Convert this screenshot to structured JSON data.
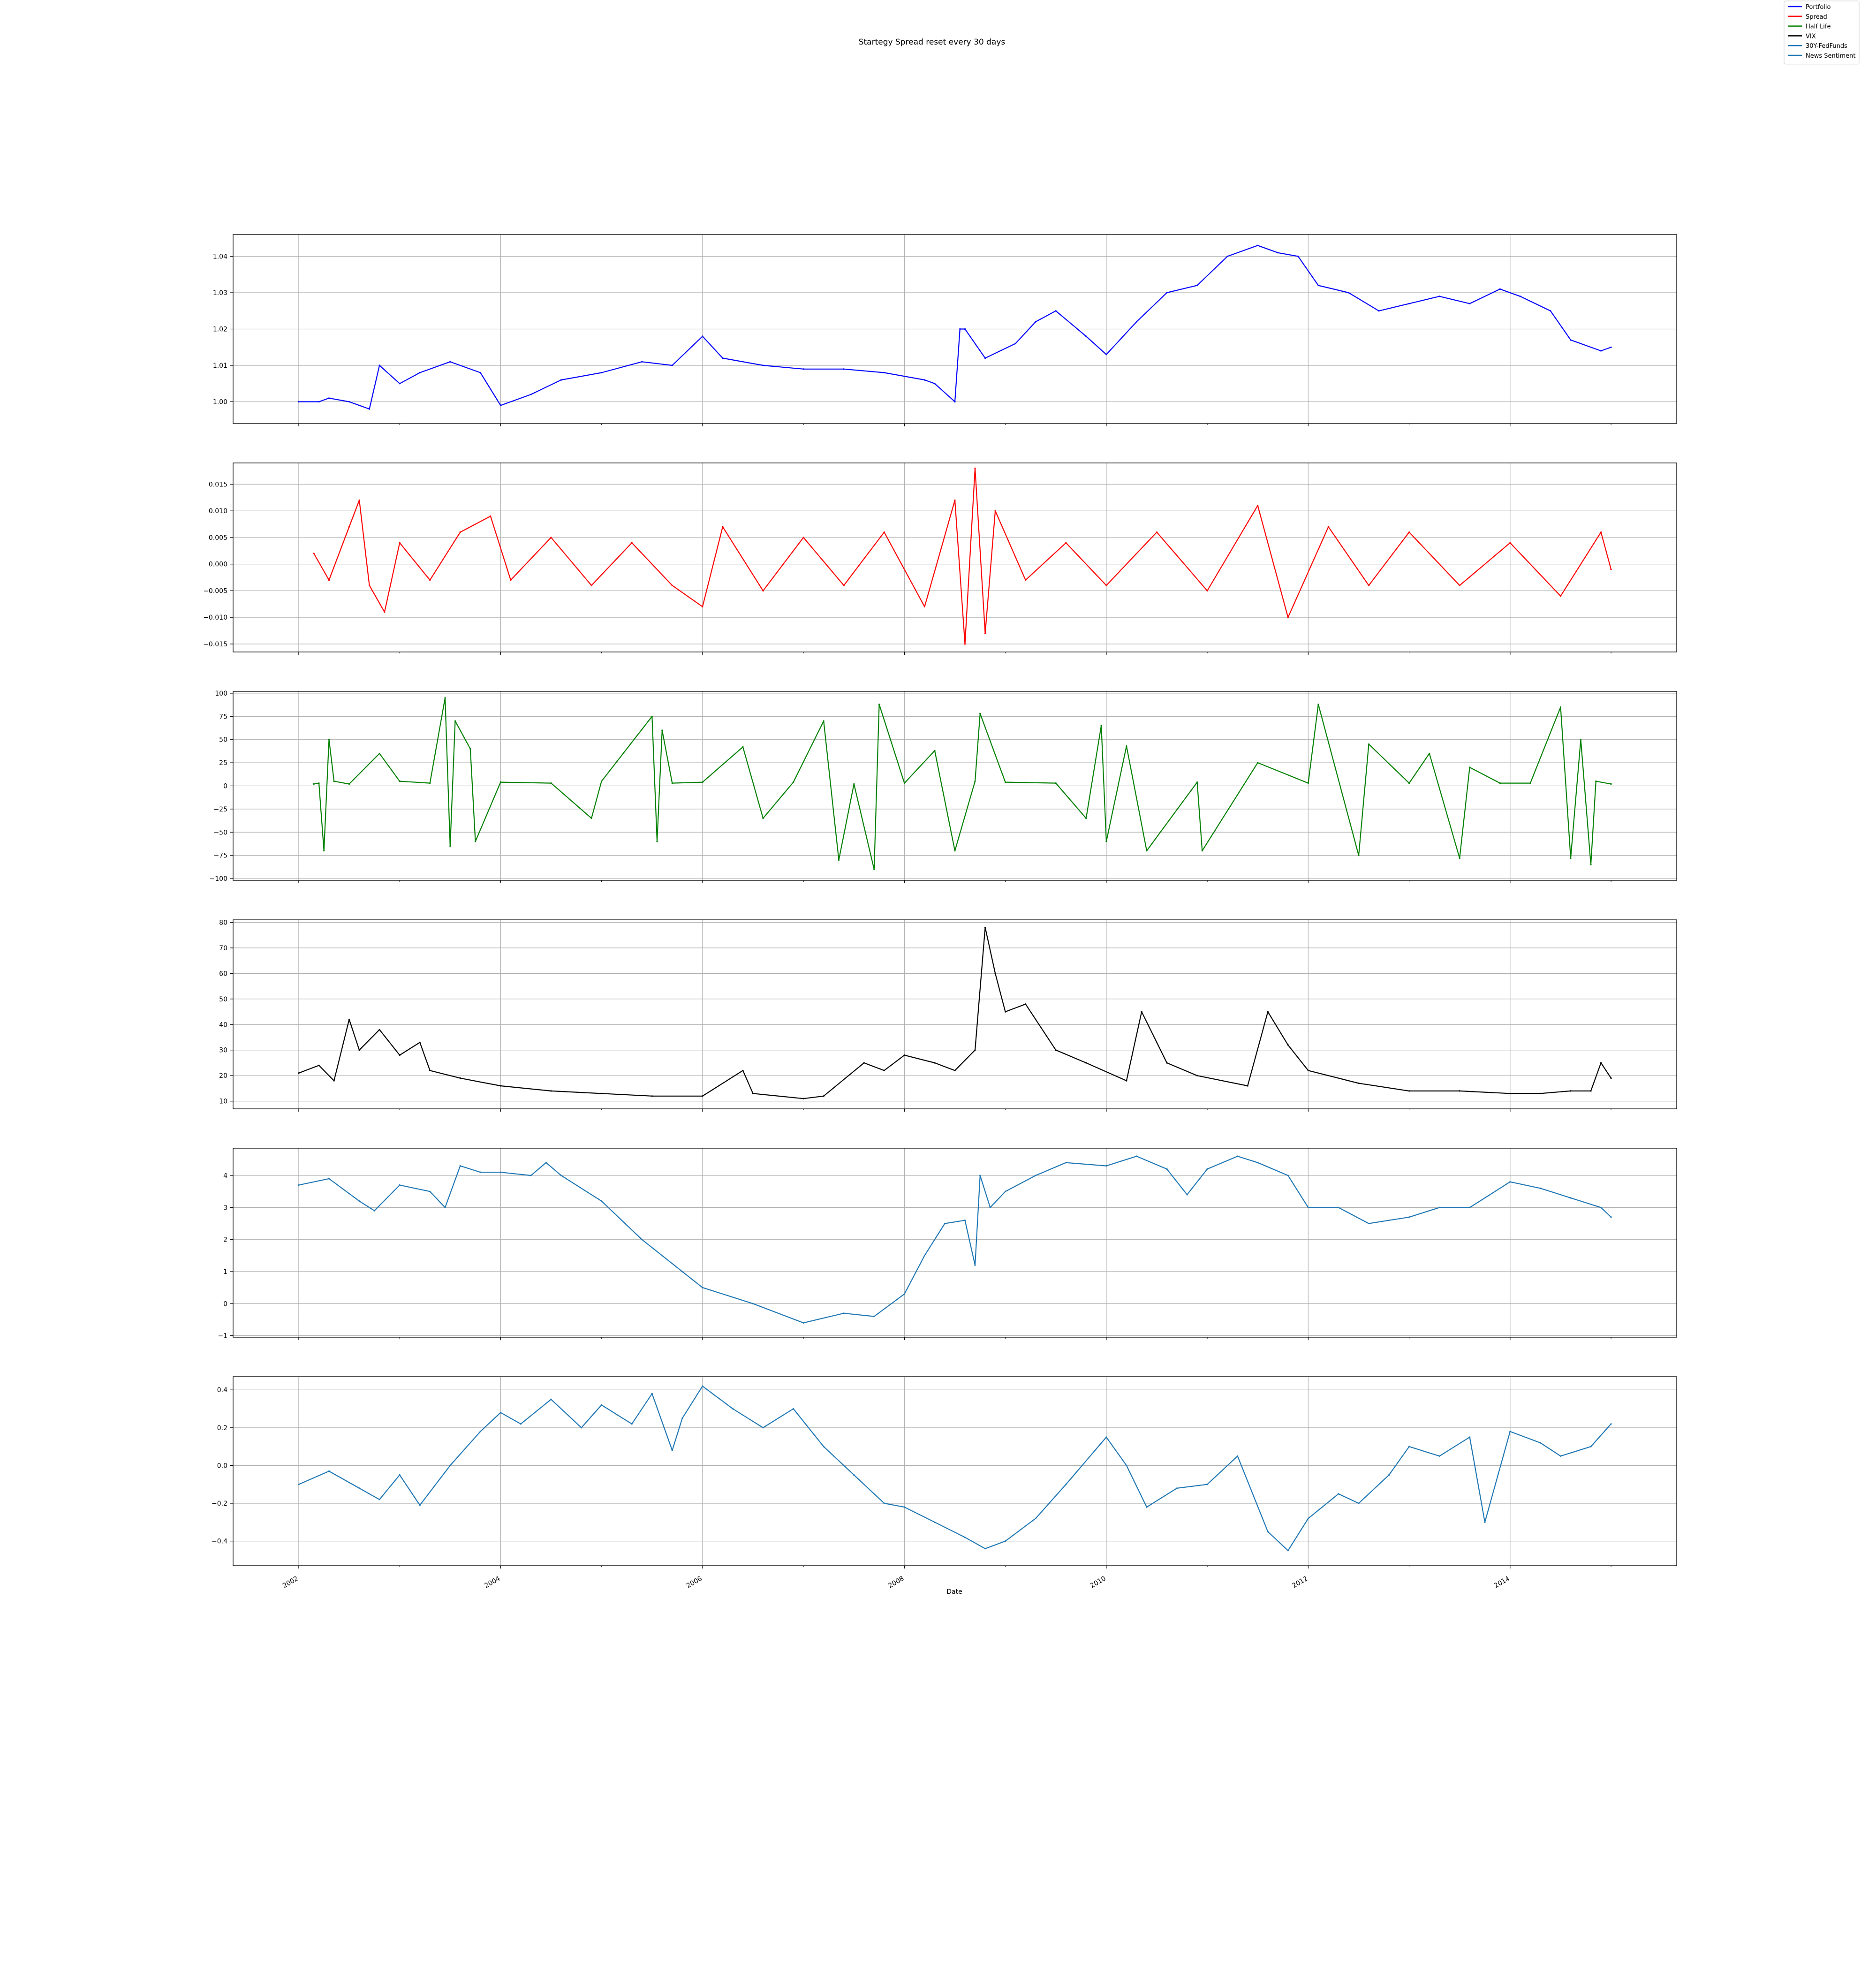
{
  "figure": {
    "title": "Startegy Spread reset every 30 days",
    "xlabel": "Date",
    "x_tick_labels": [
      "2002",
      "2004",
      "2006",
      "2008",
      "2010",
      "2012",
      "2014"
    ],
    "x_tick_values": [
      2002,
      2004,
      2006,
      2008,
      2010,
      2012,
      2014
    ],
    "xlim": [
      2001.35,
      2015.65
    ]
  },
  "legend": {
    "placement": "top-right",
    "entries": [
      {
        "label": "Portfolio",
        "color": "#0000ff"
      },
      {
        "label": "Spread",
        "color": "#ff0000"
      },
      {
        "label": "Half Life",
        "color": "#008000"
      },
      {
        "label": "VIX",
        "color": "#000000"
      },
      {
        "label": "30Y-FedFunds",
        "color": "#1f77b4"
      },
      {
        "label": "News Sentiment",
        "color": "#1f77b4"
      }
    ]
  },
  "chart_data": [
    {
      "type": "line",
      "name": "Portfolio",
      "color": "#0000ff",
      "ylim": [
        0.994,
        1.046
      ],
      "y_ticks": [
        1.0,
        1.01,
        1.02,
        1.03,
        1.04
      ],
      "y_tick_labels": [
        "1.00",
        "1.01",
        "1.02",
        "1.03",
        "1.04"
      ],
      "grid": true,
      "x": [
        2002.0,
        2002.2,
        2002.3,
        2002.5,
        2002.7,
        2002.8,
        2003.0,
        2003.2,
        2003.5,
        2003.8,
        2004.0,
        2004.3,
        2004.6,
        2005.0,
        2005.4,
        2005.7,
        2006.0,
        2006.2,
        2006.6,
        2007.0,
        2007.4,
        2007.8,
        2008.2,
        2008.3,
        2008.5,
        2008.55,
        2008.6,
        2008.8,
        2009.1,
        2009.3,
        2009.5,
        2009.8,
        2010.0,
        2010.3,
        2010.6,
        2010.9,
        2011.2,
        2011.5,
        2011.7,
        2011.9,
        2012.1,
        2012.4,
        2012.7,
        2013.0,
        2013.3,
        2013.6,
        2013.9,
        2014.1,
        2014.4,
        2014.6,
        2014.9,
        2015.0
      ],
      "y": [
        1.0,
        1.0,
        1.001,
        1.0,
        0.998,
        1.01,
        1.005,
        1.008,
        1.011,
        1.008,
        0.999,
        1.002,
        1.006,
        1.008,
        1.011,
        1.01,
        1.018,
        1.012,
        1.01,
        1.009,
        1.009,
        1.008,
        1.006,
        1.005,
        1.0,
        1.02,
        1.02,
        1.012,
        1.016,
        1.022,
        1.025,
        1.018,
        1.013,
        1.022,
        1.03,
        1.032,
        1.04,
        1.043,
        1.041,
        1.04,
        1.032,
        1.03,
        1.025,
        1.027,
        1.029,
        1.027,
        1.031,
        1.029,
        1.025,
        1.017,
        1.014,
        1.015
      ]
    },
    {
      "type": "line",
      "name": "Spread",
      "color": "#ff0000",
      "ylim": [
        -0.0165,
        0.019
      ],
      "y_ticks": [
        -0.015,
        -0.01,
        -0.005,
        0.0,
        0.005,
        0.01,
        0.015
      ],
      "y_tick_labels": [
        "−0.015",
        "−0.010",
        "−0.005",
        "0.000",
        "0.005",
        "0.010",
        "0.015"
      ],
      "grid": true,
      "x": [
        2002.15,
        2002.3,
        2002.5,
        2002.6,
        2002.7,
        2002.85,
        2003.0,
        2003.3,
        2003.6,
        2003.9,
        2004.1,
        2004.5,
        2004.9,
        2005.3,
        2005.7,
        2006.0,
        2006.2,
        2006.6,
        2007.0,
        2007.4,
        2007.8,
        2008.2,
        2008.5,
        2008.6,
        2008.7,
        2008.8,
        2008.9,
        2009.2,
        2009.6,
        2010.0,
        2010.5,
        2011.0,
        2011.5,
        2011.8,
        2012.2,
        2012.6,
        2013.0,
        2013.5,
        2014.0,
        2014.5,
        2014.9,
        2015.0
      ],
      "y": [
        0.002,
        -0.003,
        0.007,
        0.012,
        -0.004,
        -0.009,
        0.004,
        -0.003,
        0.006,
        0.009,
        -0.003,
        0.005,
        -0.004,
        0.004,
        -0.004,
        -0.008,
        0.007,
        -0.005,
        0.005,
        -0.004,
        0.006,
        -0.008,
        0.012,
        -0.015,
        0.018,
        -0.013,
        0.01,
        -0.003,
        0.004,
        -0.004,
        0.006,
        -0.005,
        0.011,
        -0.01,
        0.007,
        -0.004,
        0.006,
        -0.004,
        0.004,
        -0.006,
        0.006,
        -0.001
      ]
    },
    {
      "type": "line",
      "name": "Half Life",
      "color": "#008000",
      "ylim": [
        -102,
        102
      ],
      "y_ticks": [
        -100,
        -75,
        -50,
        -25,
        0,
        25,
        50,
        75,
        100
      ],
      "y_tick_labels": [
        "−100",
        "−75",
        "−50",
        "−25",
        "0",
        "25",
        "50",
        "75",
        "100"
      ],
      "grid": true,
      "x": [
        2002.15,
        2002.2,
        2002.25,
        2002.3,
        2002.35,
        2002.5,
        2002.8,
        2003.0,
        2003.3,
        2003.45,
        2003.5,
        2003.55,
        2003.7,
        2003.75,
        2004.0,
        2004.5,
        2004.9,
        2005.0,
        2005.5,
        2005.55,
        2005.6,
        2005.7,
        2006.0,
        2006.4,
        2006.6,
        2006.9,
        2007.2,
        2007.35,
        2007.5,
        2007.7,
        2007.75,
        2008.0,
        2008.3,
        2008.5,
        2008.7,
        2008.75,
        2009.0,
        2009.5,
        2009.8,
        2009.95,
        2010.0,
        2010.2,
        2010.4,
        2010.9,
        2010.95,
        2011.5,
        2012.0,
        2012.1,
        2012.5,
        2012.6,
        2013.0,
        2013.2,
        2013.5,
        2013.6,
        2013.9,
        2014.2,
        2014.5,
        2014.6,
        2014.7,
        2014.8,
        2014.85,
        2015.0
      ],
      "y": [
        2,
        3,
        -70,
        50,
        5,
        2,
        35,
        5,
        3,
        95,
        -65,
        70,
        40,
        -60,
        4,
        3,
        -35,
        5,
        75,
        -60,
        60,
        3,
        4,
        42,
        -35,
        4,
        70,
        -80,
        2,
        -90,
        88,
        3,
        38,
        -70,
        5,
        78,
        4,
        3,
        -35,
        65,
        -60,
        43,
        -70,
        4,
        -70,
        25,
        3,
        88,
        -75,
        45,
        3,
        35,
        -78,
        20,
        3,
        3,
        85,
        -78,
        50,
        -85,
        5,
        2
      ]
    },
    {
      "type": "line",
      "name": "VIX",
      "color": "#000000",
      "ylim": [
        7,
        81
      ],
      "y_ticks": [
        10,
        20,
        30,
        40,
        50,
        60,
        70,
        80
      ],
      "y_tick_labels": [
        "10",
        "20",
        "30",
        "40",
        "50",
        "60",
        "70",
        "80"
      ],
      "grid": true,
      "x": [
        2002.0,
        2002.2,
        2002.35,
        2002.5,
        2002.6,
        2002.8,
        2003.0,
        2003.2,
        2003.3,
        2003.6,
        2004.0,
        2004.5,
        2005.0,
        2005.5,
        2006.0,
        2006.4,
        2006.5,
        2007.0,
        2007.2,
        2007.6,
        2007.8,
        2008.0,
        2008.3,
        2008.5,
        2008.7,
        2008.8,
        2008.9,
        2009.0,
        2009.2,
        2009.5,
        2009.8,
        2010.2,
        2010.35,
        2010.6,
        2010.9,
        2011.4,
        2011.6,
        2011.8,
        2012.0,
        2012.5,
        2013.0,
        2013.5,
        2014.0,
        2014.3,
        2014.6,
        2014.8,
        2014.9,
        2015.0
      ],
      "y": [
        21,
        24,
        18,
        42,
        30,
        38,
        28,
        33,
        22,
        19,
        16,
        14,
        13,
        12,
        12,
        22,
        13,
        11,
        12,
        25,
        22,
        28,
        25,
        22,
        30,
        78,
        60,
        45,
        48,
        30,
        25,
        18,
        45,
        25,
        20,
        16,
        45,
        32,
        22,
        17,
        14,
        14,
        13,
        13,
        14,
        14,
        25,
        19
      ]
    },
    {
      "type": "line",
      "name": "30Y-FedFunds",
      "color": "#1f77b4",
      "ylim": [
        -1.05,
        4.85
      ],
      "y_ticks": [
        -1,
        0,
        1,
        2,
        3,
        4
      ],
      "y_tick_labels": [
        "−1",
        "0",
        "1",
        "2",
        "3",
        "4"
      ],
      "grid": true,
      "x": [
        2002.0,
        2002.3,
        2002.6,
        2002.75,
        2003.0,
        2003.3,
        2003.45,
        2003.6,
        2003.8,
        2004.0,
        2004.3,
        2004.45,
        2004.6,
        2005.0,
        2005.4,
        2005.8,
        2006.0,
        2006.5,
        2007.0,
        2007.4,
        2007.7,
        2008.0,
        2008.2,
        2008.4,
        2008.6,
        2008.7,
        2008.75,
        2008.85,
        2009.0,
        2009.3,
        2009.6,
        2010.0,
        2010.3,
        2010.6,
        2010.8,
        2011.0,
        2011.3,
        2011.5,
        2011.8,
        2012.0,
        2012.3,
        2012.6,
        2013.0,
        2013.3,
        2013.6,
        2014.0,
        2014.3,
        2014.6,
        2014.9,
        2015.0
      ],
      "y": [
        3.7,
        3.9,
        3.2,
        2.9,
        3.7,
        3.5,
        3.0,
        4.3,
        4.1,
        4.1,
        4.0,
        4.4,
        4.0,
        3.2,
        2.0,
        1.0,
        0.5,
        0.0,
        -0.6,
        -0.3,
        -0.4,
        0.3,
        1.5,
        2.5,
        2.6,
        1.2,
        4.0,
        3.0,
        3.5,
        4.0,
        4.4,
        4.3,
        4.6,
        4.2,
        3.4,
        4.2,
        4.6,
        4.4,
        4.0,
        3.0,
        3.0,
        2.5,
        2.7,
        3.0,
        3.0,
        3.8,
        3.6,
        3.3,
        3.0,
        2.7
      ]
    },
    {
      "type": "line",
      "name": "News Sentiment",
      "color": "#1f77b4",
      "ylim": [
        -0.53,
        0.47
      ],
      "y_ticks": [
        -0.4,
        -0.2,
        0.0,
        0.2,
        0.4
      ],
      "y_tick_labels": [
        "−0.4",
        "−0.2",
        "0.0",
        "0.2",
        "0.4"
      ],
      "grid": true,
      "x": [
        2002.0,
        2002.3,
        2002.6,
        2002.8,
        2003.0,
        2003.2,
        2003.5,
        2003.8,
        2004.0,
        2004.2,
        2004.5,
        2004.8,
        2005.0,
        2005.3,
        2005.5,
        2005.7,
        2005.8,
        2006.0,
        2006.3,
        2006.6,
        2006.9,
        2007.2,
        2007.5,
        2007.8,
        2008.0,
        2008.3,
        2008.6,
        2008.8,
        2009.0,
        2009.3,
        2009.6,
        2010.0,
        2010.2,
        2010.4,
        2010.7,
        2011.0,
        2011.3,
        2011.6,
        2011.8,
        2012.0,
        2012.3,
        2012.5,
        2012.8,
        2013.0,
        2013.3,
        2013.6,
        2013.75,
        2014.0,
        2014.3,
        2014.5,
        2014.8,
        2015.0
      ],
      "y": [
        -0.1,
        -0.03,
        -0.12,
        -0.18,
        -0.05,
        -0.21,
        0.0,
        0.18,
        0.28,
        0.22,
        0.35,
        0.2,
        0.32,
        0.22,
        0.38,
        0.08,
        0.25,
        0.42,
        0.3,
        0.2,
        0.3,
        0.1,
        -0.05,
        -0.2,
        -0.22,
        -0.3,
        -0.38,
        -0.44,
        -0.4,
        -0.28,
        -0.1,
        0.15,
        0.0,
        -0.22,
        -0.12,
        -0.1,
        0.05,
        -0.35,
        -0.45,
        -0.28,
        -0.15,
        -0.2,
        -0.05,
        0.1,
        0.05,
        0.15,
        -0.3,
        0.18,
        0.12,
        0.05,
        0.1,
        0.22
      ]
    }
  ]
}
